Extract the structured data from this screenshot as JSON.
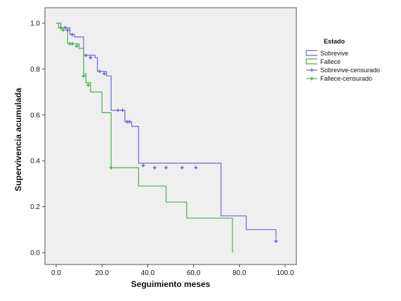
{
  "chart_data": {
    "type": "line",
    "subtype": "kaplan-meier survival curves",
    "xlabel": "Seguimiento meses",
    "ylabel": "Supervivencia acumulada",
    "xlim": [
      0,
      100
    ],
    "ylim": [
      0,
      1
    ],
    "x_ticks": [
      "0.0",
      "20.0",
      "40.0",
      "60.0",
      "80.0",
      "100.0"
    ],
    "y_ticks": [
      "0.0",
      "0.2",
      "0.4",
      "0.6",
      "0.8",
      "1.0"
    ],
    "grid": false,
    "legend": {
      "title": "Estado",
      "position": "right",
      "entries": [
        {
          "label": "Sobrevive",
          "color": "#6b6bd8",
          "marker": "line"
        },
        {
          "label": "Fallece",
          "color": "#4caf50",
          "marker": "line"
        },
        {
          "label": "Sobrevive-censurado",
          "color": "#6b6bd8",
          "marker": "cross"
        },
        {
          "label": "Fallece-censurado",
          "color": "#4caf50",
          "marker": "cross"
        }
      ]
    },
    "series": [
      {
        "name": "Sobrevive",
        "color": "#6b6bd8",
        "steps": [
          [
            0,
            1.0
          ],
          [
            2,
            0.98
          ],
          [
            6,
            0.95
          ],
          [
            8,
            0.94
          ],
          [
            12,
            0.86
          ],
          [
            17,
            0.85
          ],
          [
            18,
            0.79
          ],
          [
            22,
            0.77
          ],
          [
            24,
            0.62
          ],
          [
            30,
            0.57
          ],
          [
            33,
            0.55
          ],
          [
            36,
            0.39
          ],
          [
            72,
            0.16
          ],
          [
            83,
            0.1
          ],
          [
            96,
            0.06
          ]
        ],
        "end_x": 96,
        "censored": [
          [
            2,
            0.98
          ],
          [
            4,
            0.98
          ],
          [
            5,
            0.97
          ],
          [
            7,
            0.95
          ],
          [
            13,
            0.86
          ],
          [
            15,
            0.85
          ],
          [
            19,
            0.79
          ],
          [
            21,
            0.78
          ],
          [
            27,
            0.62
          ],
          [
            29,
            0.62
          ],
          [
            31,
            0.57
          ],
          [
            32,
            0.57
          ],
          [
            38,
            0.38
          ],
          [
            43,
            0.37
          ],
          [
            48,
            0.37
          ],
          [
            55,
            0.37
          ],
          [
            61,
            0.37
          ],
          [
            96,
            0.05
          ]
        ]
      },
      {
        "name": "Fallece",
        "color": "#4caf50",
        "steps": [
          [
            0,
            1.0
          ],
          [
            1,
            0.98
          ],
          [
            5,
            0.91
          ],
          [
            10,
            0.89
          ],
          [
            12,
            0.78
          ],
          [
            13,
            0.74
          ],
          [
            15,
            0.7
          ],
          [
            20,
            0.61
          ],
          [
            24,
            0.37
          ],
          [
            36,
            0.29
          ],
          [
            48,
            0.22
          ],
          [
            57,
            0.15
          ],
          [
            77,
            0.0
          ]
        ],
        "end_x": 77,
        "censored": [
          [
            2,
            0.98
          ],
          [
            3,
            0.97
          ],
          [
            6,
            0.91
          ],
          [
            7,
            0.91
          ],
          [
            9,
            0.9
          ],
          [
            12,
            0.77
          ],
          [
            14,
            0.73
          ],
          [
            24,
            0.37
          ]
        ]
      }
    ]
  }
}
